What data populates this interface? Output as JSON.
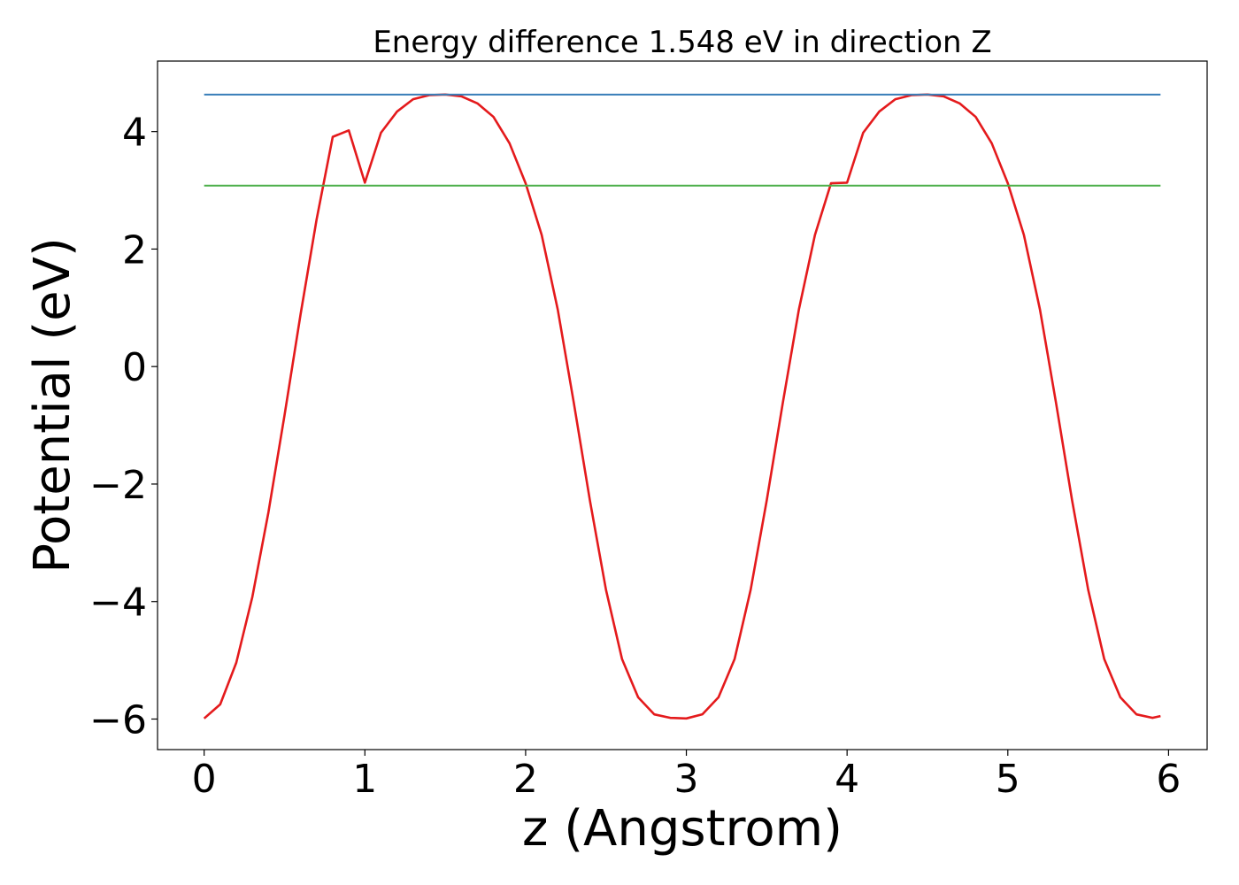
{
  "chart_data": {
    "type": "line",
    "title": "Energy difference 1.548 eV in direction Z",
    "xlabel": "z (Angstrom)",
    "ylabel": "Potential (eV)",
    "xlim": [
      -0.29,
      6.24
    ],
    "ylim": [
      -6.52,
      5.2
    ],
    "xticks": [
      0,
      1,
      2,
      3,
      4,
      5,
      6
    ],
    "yticks": [
      -6,
      -4,
      -2,
      0,
      2,
      4
    ],
    "xtick_labels": [
      "0",
      "1",
      "2",
      "3",
      "4",
      "5",
      "6"
    ],
    "ytick_labels": [
      "−6",
      "−4",
      "−2",
      "0",
      "2",
      "4"
    ],
    "grid": false,
    "legend": "none",
    "series": [
      {
        "kind": "curve",
        "color": "#e41a1c",
        "x": [
          0.0,
          0.1,
          0.2,
          0.3,
          0.4,
          0.5,
          0.6,
          0.7,
          0.8,
          0.9,
          1.0,
          1.1,
          1.2,
          1.3,
          1.4,
          1.5,
          1.6,
          1.7,
          1.8,
          1.9,
          2.0,
          2.1,
          2.2,
          2.3,
          2.4,
          2.5,
          2.6,
          2.7,
          2.8,
          2.9,
          3.0,
          3.1,
          3.2,
          3.3,
          3.4,
          3.5,
          3.6,
          3.7,
          3.8,
          3.9,
          4.0,
          4.1,
          4.2,
          4.3,
          4.4,
          4.5,
          4.6,
          4.7,
          4.8,
          4.9,
          5.0,
          5.1,
          5.2,
          5.3,
          5.4,
          5.5,
          5.6,
          5.7,
          5.8,
          5.9,
          5.95
        ],
        "y": [
          -5.99,
          -5.75,
          -5.04,
          -3.92,
          -2.48,
          -0.83,
          0.89,
          2.51,
          3.91,
          4.02,
          3.13,
          3.98,
          4.34,
          4.55,
          4.62,
          4.63,
          4.6,
          4.48,
          4.25,
          3.8,
          3.12,
          2.24,
          0.97,
          -0.62,
          -2.28,
          -3.8,
          -4.98,
          -5.63,
          -5.92,
          -5.98,
          -5.99,
          -5.92,
          -5.63,
          -4.98,
          -3.8,
          -2.28,
          -0.62,
          0.97,
          2.24,
          3.12,
          3.13,
          3.98,
          4.34,
          4.55,
          4.62,
          4.63,
          4.6,
          4.48,
          4.25,
          3.8,
          3.12,
          2.24,
          0.97,
          -0.62,
          -2.28,
          -3.8,
          -4.98,
          -5.63,
          -5.92,
          -5.98,
          -5.95
        ]
      },
      {
        "kind": "hline",
        "color": "#377eb8",
        "y": 4.63,
        "x": [
          0.0,
          5.95
        ]
      },
      {
        "kind": "hline",
        "color": "#4daf4a",
        "y": 3.08,
        "x": [
          0.0,
          5.95
        ]
      }
    ]
  }
}
